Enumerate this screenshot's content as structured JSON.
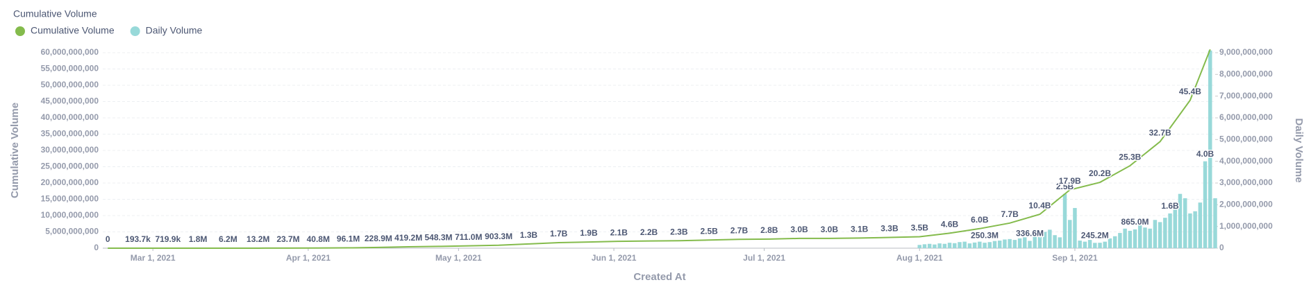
{
  "chart_data": {
    "type": "combo",
    "title": "Cumulative Volume",
    "xlabel": "Created At",
    "ylabel": "Cumulative Volume",
    "y2label": "Daily Volume",
    "legend": "top-left",
    "grid": true,
    "xlim": [
      "2021-02-19",
      "2021-09-29"
    ],
    "xticks": [
      {
        "value": "2021-03-01",
        "label": "Mar 1, 2021"
      },
      {
        "value": "2021-04-01",
        "label": "Apr 1, 2021"
      },
      {
        "value": "2021-05-01",
        "label": "May 1, 2021"
      },
      {
        "value": "2021-06-01",
        "label": "Jun 1, 2021"
      },
      {
        "value": "2021-07-01",
        "label": "Jul 1, 2021"
      },
      {
        "value": "2021-08-01",
        "label": "Aug 1, 2021"
      },
      {
        "value": "2021-09-01",
        "label": "Sep 1, 2021"
      }
    ],
    "ylim": [
      0,
      60000000000
    ],
    "yticks": [
      0,
      {
        "value": 5000000000,
        "label": "5,000,000,000"
      },
      {
        "value": 10000000000,
        "label": "10,000,000,000"
      },
      {
        "value": 15000000000,
        "label": "15,000,000,000"
      },
      {
        "value": 20000000000,
        "label": "20,000,000,000"
      },
      {
        "value": 25000000000,
        "label": "25,000,000,000"
      },
      {
        "value": 30000000000,
        "label": "30,000,000,000"
      },
      {
        "value": 35000000000,
        "label": "35,000,000,000"
      },
      {
        "value": 40000000000,
        "label": "40,000,000,000"
      },
      {
        "value": 45000000000,
        "label": "45,000,000,000"
      },
      {
        "value": 50000000000,
        "label": "50,000,000,000"
      },
      {
        "value": 55000000000,
        "label": "55,000,000,000"
      },
      {
        "value": 60000000000,
        "label": "60,000,000,000"
      }
    ],
    "y2lim": [
      0,
      9000000000
    ],
    "y2ticks": [
      0,
      {
        "value": 1000000000,
        "label": "1,000,000,000"
      },
      {
        "value": 2000000000,
        "label": "2,000,000,000"
      },
      {
        "value": 3000000000,
        "label": "3,000,000,000"
      },
      {
        "value": 4000000000,
        "label": "4,000,000,000"
      },
      {
        "value": 5000000000,
        "label": "5,000,000,000"
      },
      {
        "value": 6000000000,
        "label": "6,000,000,000"
      },
      {
        "value": 7000000000,
        "label": "7,000,000,000"
      },
      {
        "value": 8000000000,
        "label": "8,000,000,000"
      },
      {
        "value": 9000000000,
        "label": "9,000,000,000"
      }
    ],
    "series": [
      {
        "name": "Cumulative Volume",
        "type": "line",
        "color": "#84bb4c",
        "x": [
          "2021-02-20",
          "2021-02-26",
          "2021-03-04",
          "2021-03-10",
          "2021-03-16",
          "2021-03-22",
          "2021-03-28",
          "2021-04-03",
          "2021-04-09",
          "2021-04-15",
          "2021-04-21",
          "2021-04-27",
          "2021-05-03",
          "2021-05-09",
          "2021-05-15",
          "2021-05-21",
          "2021-05-27",
          "2021-06-02",
          "2021-06-08",
          "2021-06-14",
          "2021-06-20",
          "2021-06-26",
          "2021-07-02",
          "2021-07-08",
          "2021-07-14",
          "2021-07-20",
          "2021-07-26",
          "2021-08-01",
          "2021-08-07",
          "2021-08-13",
          "2021-08-19",
          "2021-08-25",
          "2021-08-31",
          "2021-09-06",
          "2021-09-12",
          "2021-09-18",
          "2021-09-24",
          "2021-09-28"
        ],
        "values": [
          0,
          193700,
          719900,
          1800000,
          6200000,
          13200000,
          23700000,
          40800000,
          96100000,
          228900000,
          419200000,
          548300000,
          711000000,
          903300000,
          1300000000,
          1700000000,
          1900000000,
          2100000000,
          2200000000,
          2300000000,
          2500000000,
          2700000000,
          2800000000,
          3000000000,
          3000000000,
          3100000000,
          3300000000,
          3500000000,
          4600000000,
          6000000000,
          7700000000,
          10400000000,
          17900000000,
          20200000000,
          25300000000,
          32700000000,
          45400000000,
          61000000000
        ],
        "value_labels": [
          "0",
          "193.7k",
          "719.9k",
          "1.8M",
          "6.2M",
          "13.2M",
          "23.7M",
          "40.8M",
          "96.1M",
          "228.9M",
          "419.2M",
          "548.3M",
          "711.0M",
          "903.3M",
          "1.3B",
          "1.7B",
          "1.9B",
          "2.1B",
          "2.2B",
          "2.3B",
          "2.5B",
          "2.7B",
          "2.8B",
          "3.0B",
          "3.0B",
          "3.1B",
          "3.3B",
          "3.5B",
          "4.6B",
          "6.0B",
          "7.7B",
          "10.4B",
          "17.9B",
          "20.2B",
          "25.3B",
          "32.7B",
          "45.4B",
          null
        ]
      },
      {
        "name": "Daily Volume",
        "type": "bar",
        "axis": "y2",
        "color": "#98d9d9",
        "x": [
          "2021-08-01",
          "2021-08-02",
          "2021-08-03",
          "2021-08-04",
          "2021-08-05",
          "2021-08-06",
          "2021-08-07",
          "2021-08-08",
          "2021-08-09",
          "2021-08-10",
          "2021-08-11",
          "2021-08-12",
          "2021-08-13",
          "2021-08-14",
          "2021-08-15",
          "2021-08-16",
          "2021-08-17",
          "2021-08-18",
          "2021-08-19",
          "2021-08-20",
          "2021-08-21",
          "2021-08-22",
          "2021-08-23",
          "2021-08-24",
          "2021-08-25",
          "2021-08-26",
          "2021-08-27",
          "2021-08-28",
          "2021-08-29",
          "2021-08-30",
          "2021-08-31",
          "2021-09-01",
          "2021-09-02",
          "2021-09-03",
          "2021-09-04",
          "2021-09-05",
          "2021-09-06",
          "2021-09-07",
          "2021-09-08",
          "2021-09-09",
          "2021-09-10",
          "2021-09-11",
          "2021-09-12",
          "2021-09-13",
          "2021-09-14",
          "2021-09-15",
          "2021-09-16",
          "2021-09-17",
          "2021-09-18",
          "2021-09-19",
          "2021-09-20",
          "2021-09-21",
          "2021-09-22",
          "2021-09-23",
          "2021-09-24",
          "2021-09-25",
          "2021-09-26",
          "2021-09-27",
          "2021-09-28",
          "2021-09-29"
        ],
        "values": [
          150000000,
          180000000,
          200000000,
          170000000,
          220000000,
          200000000,
          250000000,
          230000000,
          280000000,
          300000000,
          220000000,
          260000000,
          300000000,
          250300000,
          280000000,
          330000000,
          350000000,
          400000000,
          420000000,
          380000000,
          450000000,
          500000000,
          336600000,
          550000000,
          600000000,
          750000000,
          850000000,
          600000000,
          500000000,
          2500000000,
          1300000000,
          1850000000,
          350000000,
          300000000,
          380000000,
          245200000,
          250000000,
          300000000,
          450000000,
          550000000,
          700000000,
          900000000,
          800000000,
          865000000,
          1100000000,
          950000000,
          900000000,
          1300000000,
          1200000000,
          1400000000,
          1600000000,
          1900000000,
          2500000000,
          2300000000,
          1600000000,
          1700000000,
          2100000000,
          4000000000,
          9100000000,
          2300000000
        ],
        "value_labels": [
          null,
          null,
          null,
          null,
          null,
          null,
          null,
          null,
          null,
          null,
          null,
          null,
          null,
          "250.3M",
          null,
          null,
          null,
          null,
          null,
          null,
          null,
          null,
          "336.6M",
          null,
          null,
          null,
          null,
          null,
          null,
          "2.5B",
          null,
          null,
          null,
          null,
          null,
          "245.2M",
          null,
          null,
          null,
          null,
          null,
          null,
          null,
          "865.0M",
          null,
          null,
          null,
          null,
          null,
          null,
          "1.6B",
          null,
          null,
          null,
          null,
          null,
          null,
          "4.0B",
          null,
          null
        ]
      }
    ]
  }
}
